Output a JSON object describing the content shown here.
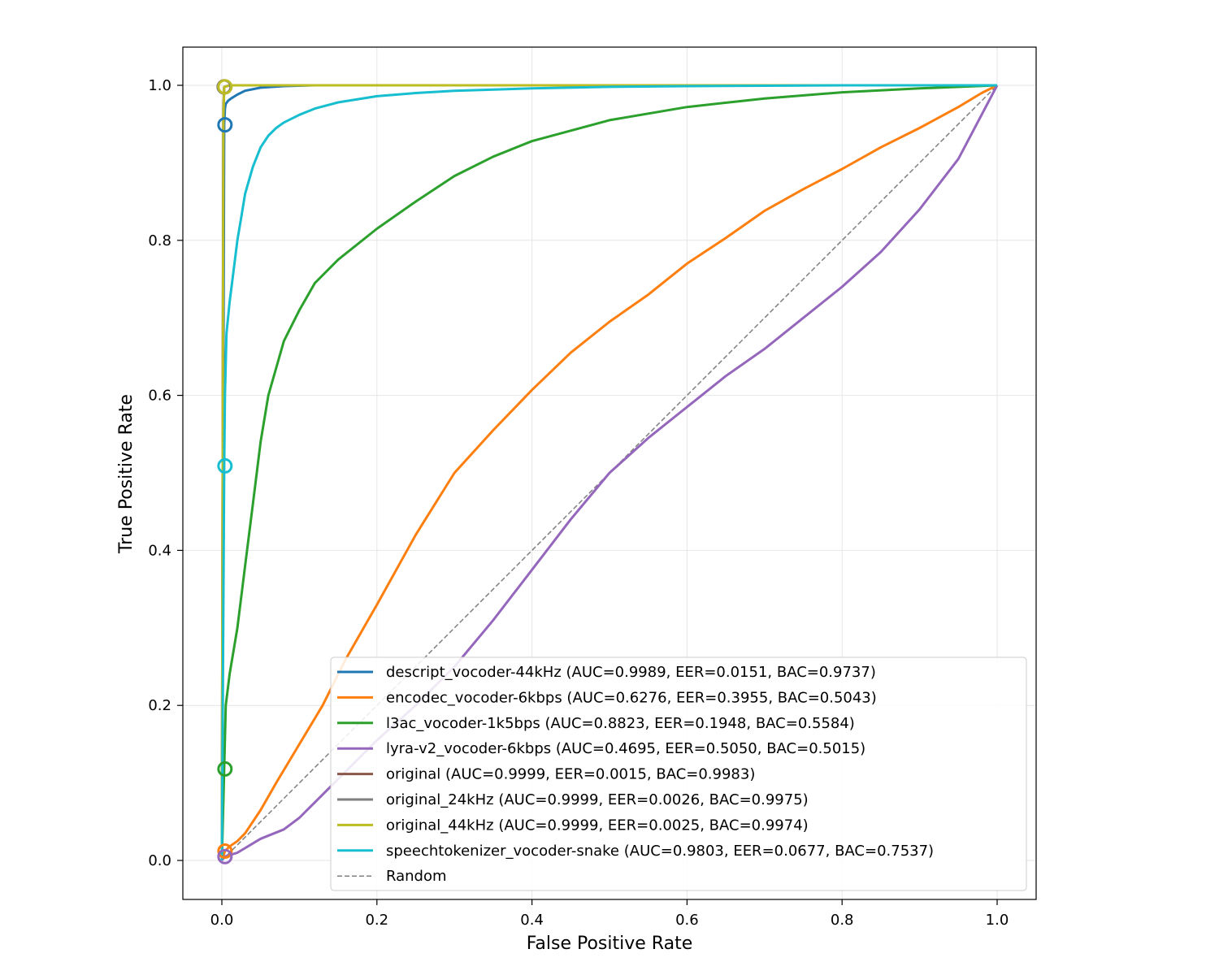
{
  "chart_data": {
    "type": "line",
    "title": "",
    "xlabel": "False Positive Rate",
    "ylabel": "True Positive Rate",
    "xlim": [
      -0.05,
      1.05
    ],
    "ylim": [
      -0.05,
      1.05
    ],
    "xticks": [
      "0.0",
      "0.2",
      "0.4",
      "0.6",
      "0.8",
      "1.0"
    ],
    "yticks": [
      "0.0",
      "0.2",
      "0.4",
      "0.6",
      "0.8",
      "1.0"
    ],
    "xtick_values": [
      0.0,
      0.2,
      0.4,
      0.6,
      0.8,
      1.0
    ],
    "ytick_values": [
      0.0,
      0.2,
      0.4,
      0.6,
      0.8,
      1.0
    ],
    "grid": true,
    "legend_position": "lower-right",
    "series": [
      {
        "name": "descript_vocoder-44kHz (AUC=0.9989, EER=0.0151, BAC=0.9737)",
        "color": "#1f77b4",
        "x": [
          0,
          0.003,
          0.004,
          0.005,
          0.008,
          0.012,
          0.02,
          0.03,
          0.05,
          0.08,
          0.12,
          0.2,
          0.4,
          0.7,
          1.0
        ],
        "y": [
          0,
          0.95,
          0.97,
          0.976,
          0.98,
          0.983,
          0.988,
          0.993,
          0.997,
          0.999,
          1.0,
          1.0,
          1.0,
          1.0,
          1.0
        ],
        "marker": [
          0.004,
          0.949
        ]
      },
      {
        "name": "encodec_vocoder-6kbps (AUC=0.6276, EER=0.3955, BAC=0.5043)",
        "color": "#ff7f0e",
        "x": [
          0,
          0.004,
          0.01,
          0.02,
          0.03,
          0.05,
          0.07,
          0.1,
          0.13,
          0.16,
          0.2,
          0.25,
          0.3,
          0.35,
          0.4,
          0.45,
          0.5,
          0.55,
          0.6,
          0.65,
          0.7,
          0.75,
          0.8,
          0.85,
          0.9,
          0.95,
          0.98,
          1.0
        ],
        "y": [
          0,
          0.012,
          0.018,
          0.025,
          0.035,
          0.065,
          0.1,
          0.15,
          0.2,
          0.26,
          0.33,
          0.42,
          0.5,
          0.555,
          0.607,
          0.655,
          0.695,
          0.73,
          0.77,
          0.803,
          0.838,
          0.866,
          0.892,
          0.92,
          0.945,
          0.972,
          0.99,
          1.0
        ],
        "marker": [
          0.004,
          0.012
        ]
      },
      {
        "name": "l3ac_vocoder-1k5bps (AUC=0.8823, EER=0.1948, BAC=0.5584)",
        "color": "#2ca02c",
        "x": [
          0,
          0.003,
          0.005,
          0.01,
          0.015,
          0.02,
          0.03,
          0.04,
          0.05,
          0.06,
          0.08,
          0.1,
          0.12,
          0.15,
          0.2,
          0.25,
          0.3,
          0.35,
          0.4,
          0.5,
          0.6,
          0.7,
          0.8,
          0.9,
          1.0
        ],
        "y": [
          0,
          0.12,
          0.2,
          0.24,
          0.27,
          0.3,
          0.38,
          0.46,
          0.54,
          0.6,
          0.67,
          0.71,
          0.745,
          0.775,
          0.815,
          0.85,
          0.883,
          0.908,
          0.928,
          0.955,
          0.972,
          0.983,
          0.991,
          0.996,
          1.0
        ],
        "marker": [
          0.004,
          0.118
        ]
      },
      {
        "name": "lyra-v2_vocoder-6kbps (AUC=0.4695, EER=0.5050, BAC=0.5015)",
        "color": "#9467bd",
        "x": [
          0,
          0.004,
          0.02,
          0.05,
          0.08,
          0.1,
          0.13,
          0.16,
          0.2,
          0.25,
          0.3,
          0.35,
          0.4,
          0.45,
          0.5,
          0.55,
          0.6,
          0.65,
          0.7,
          0.75,
          0.8,
          0.85,
          0.9,
          0.95,
          1.0
        ],
        "y": [
          0,
          0.005,
          0.01,
          0.028,
          0.04,
          0.055,
          0.085,
          0.115,
          0.155,
          0.2,
          0.25,
          0.31,
          0.375,
          0.44,
          0.5,
          0.545,
          0.585,
          0.625,
          0.66,
          0.7,
          0.74,
          0.785,
          0.84,
          0.905,
          1.0
        ],
        "marker": [
          0.004,
          0.005
        ]
      },
      {
        "name": "original (AUC=0.9999, EER=0.0015, BAC=0.9983)",
        "color": "#8c564b",
        "x": [
          0,
          0.002,
          0.003,
          0.01,
          0.1,
          0.5,
          1.0
        ],
        "y": [
          0,
          0.97,
          0.998,
          1.0,
          1.0,
          1.0,
          1.0
        ],
        "marker": [
          0.003,
          0.998
        ]
      },
      {
        "name": "original_24kHz (AUC=0.9999, EER=0.0026, BAC=0.9975)",
        "color": "#7f7f7f",
        "x": [
          0,
          0.002,
          0.003,
          0.01,
          0.1,
          0.5,
          1.0
        ],
        "y": [
          0,
          0.96,
          0.998,
          1.0,
          1.0,
          1.0,
          1.0
        ],
        "marker": [
          0.003,
          0.998
        ]
      },
      {
        "name": "original_44kHz (AUC=0.9999, EER=0.0025, BAC=0.9974)",
        "color": "#bcbd22",
        "x": [
          0,
          0.002,
          0.003,
          0.01,
          0.1,
          0.5,
          1.0
        ],
        "y": [
          0,
          0.96,
          0.998,
          1.0,
          1.0,
          1.0,
          1.0
        ],
        "marker": [
          0.004,
          0.998
        ]
      },
      {
        "name": "speechtokenizer_vocoder-snake (AUC=0.9803, EER=0.0677, BAC=0.7537)",
        "color": "#17becf",
        "x": [
          0,
          0.003,
          0.004,
          0.006,
          0.01,
          0.015,
          0.02,
          0.025,
          0.03,
          0.04,
          0.05,
          0.06,
          0.07,
          0.08,
          0.1,
          0.12,
          0.15,
          0.2,
          0.25,
          0.3,
          0.4,
          0.5,
          0.6,
          0.8,
          1.0
        ],
        "y": [
          0,
          0.51,
          0.6,
          0.68,
          0.72,
          0.76,
          0.8,
          0.83,
          0.86,
          0.895,
          0.92,
          0.935,
          0.945,
          0.952,
          0.962,
          0.97,
          0.978,
          0.986,
          0.99,
          0.993,
          0.996,
          0.998,
          0.999,
          1.0,
          1.0
        ],
        "marker": [
          0.004,
          0.509
        ]
      },
      {
        "name": "Random",
        "color": "#808080",
        "dashed": true,
        "x": [
          0,
          1
        ],
        "y": [
          0,
          1
        ]
      }
    ]
  }
}
